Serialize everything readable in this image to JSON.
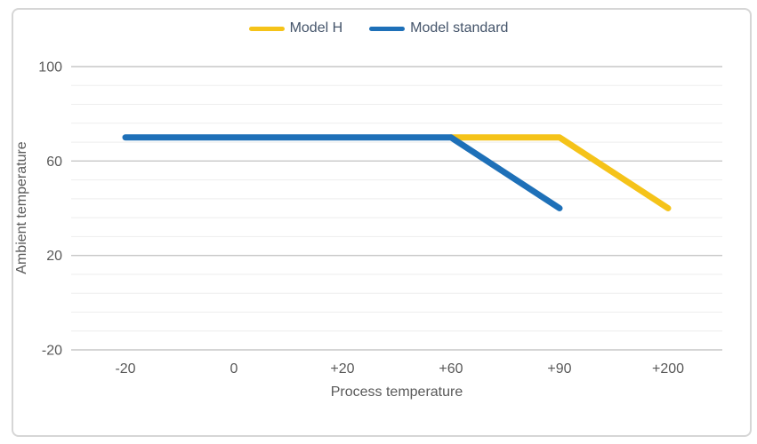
{
  "chart_data": {
    "type": "line",
    "categories": [
      "-20",
      "0",
      "+20",
      "+60",
      "+90",
      "+200"
    ],
    "series": [
      {
        "name": "Model H",
        "color": "#F5C319",
        "values": [
          null,
          null,
          null,
          70,
          70,
          40
        ]
      },
      {
        "name": "Model standard",
        "color": "#1E70B8",
        "values": [
          70,
          70,
          70,
          70,
          40,
          null
        ]
      }
    ],
    "xlabel": "Process temperature",
    "ylabel": "Ambient temperature",
    "ylim": [
      -20,
      100
    ],
    "yticks": [
      100,
      60,
      20,
      -20
    ],
    "minor_grid_step": 8,
    "grid": true,
    "legend_position": "top"
  },
  "colors": {
    "grid_major": "#c7c7c7",
    "grid_minor": "#eeeeee",
    "tick_text": "#595959",
    "legend_text": "#44546a",
    "frame_border": "#d6d6d6",
    "background": "#ffffff"
  }
}
